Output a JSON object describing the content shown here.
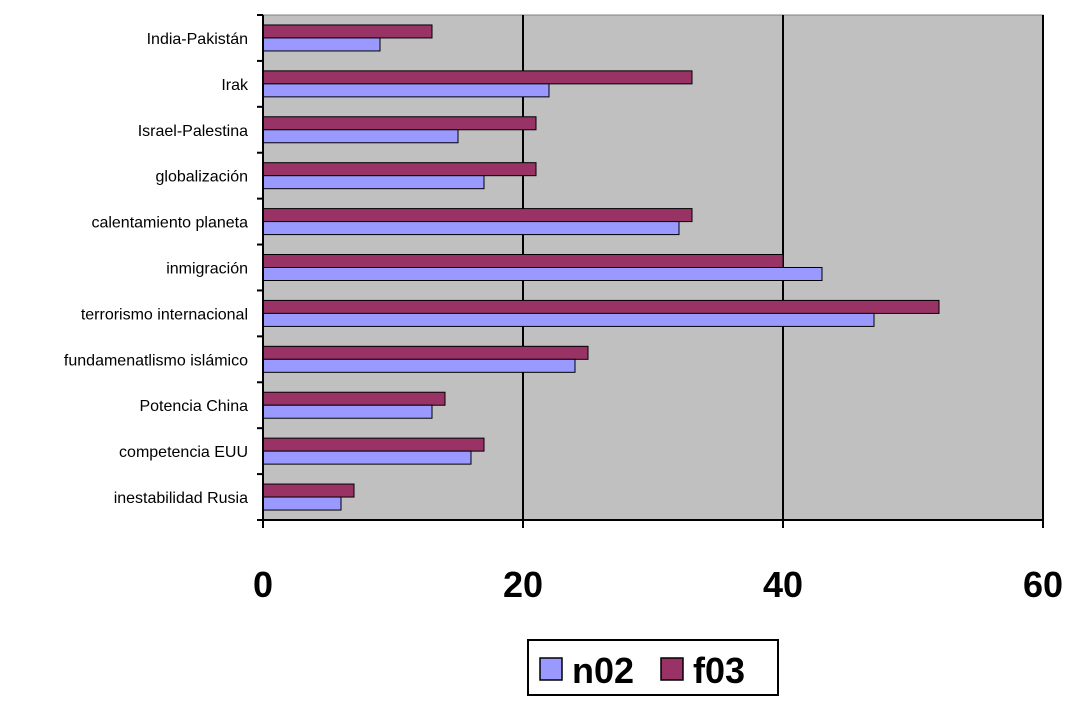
{
  "chart_data": {
    "type": "bar",
    "orientation": "horizontal",
    "categories": [
      "India-Pakistán",
      "Irak",
      "Israel-Palestina",
      "globalización",
      "calentamiento planeta",
      "inmigración",
      "terrorismo internacional",
      "fundamenatlismo islámico",
      "Potencia China",
      "competencia EUU",
      "inestabilidad Rusia"
    ],
    "series": [
      {
        "name": "n02",
        "color": "#9999FF",
        "values": [
          9,
          22,
          15,
          17,
          32,
          43,
          47,
          24,
          13,
          16,
          6
        ]
      },
      {
        "name": "f03",
        "color": "#993366",
        "values": [
          13,
          33,
          21,
          21,
          33,
          40,
          52,
          25,
          14,
          17,
          7
        ]
      }
    ],
    "xlim": [
      0,
      60
    ],
    "xticks": [
      0,
      20,
      40,
      60
    ],
    "xtick_labels": [
      "0",
      "20",
      "40",
      "60"
    ],
    "plot_background": "#C0C0C0",
    "vertical_gridlines": true,
    "legend_position": "bottom"
  }
}
